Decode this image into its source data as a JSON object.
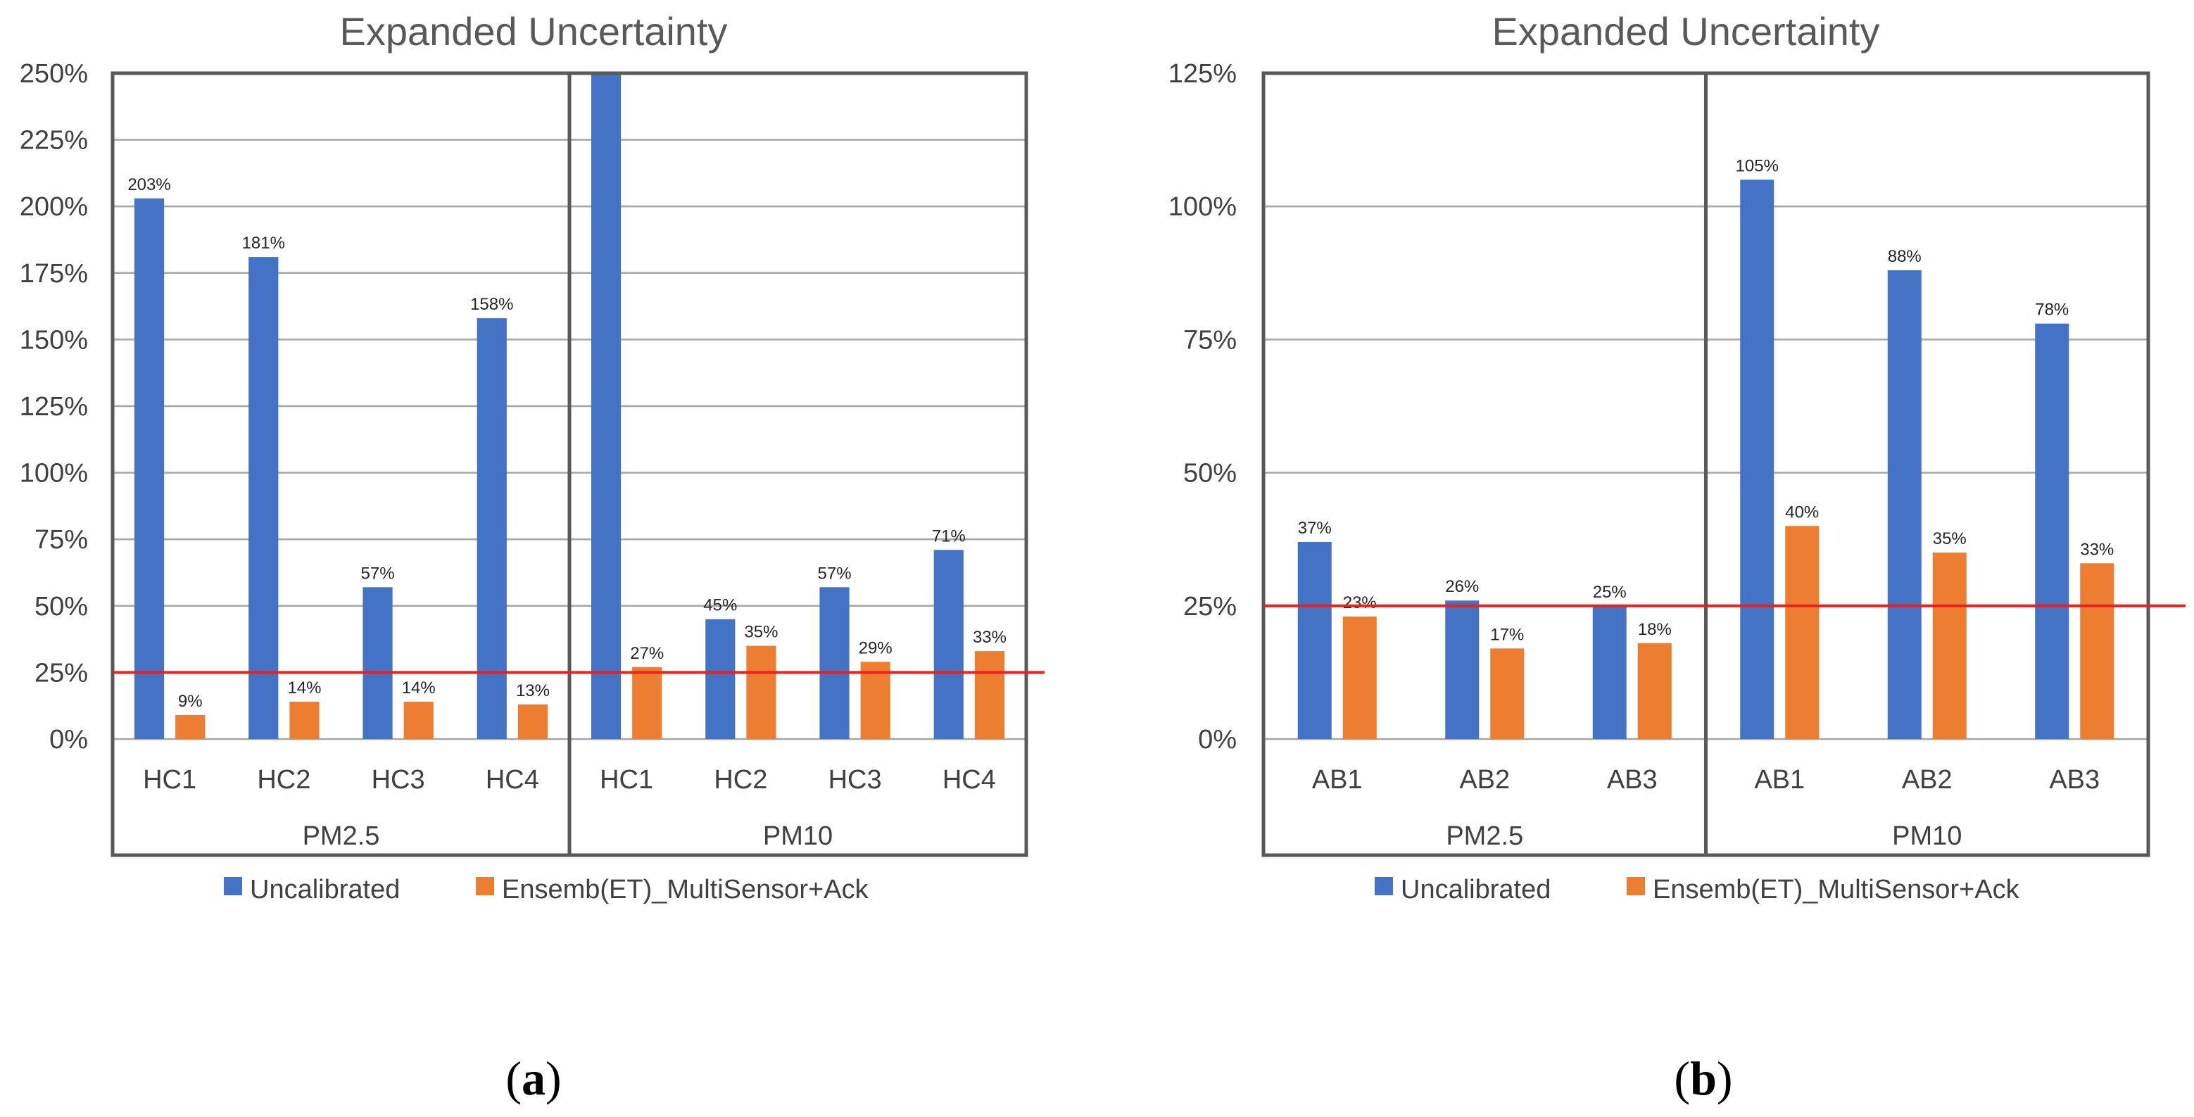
{
  "colors": {
    "uncalibrated": "#4472C4",
    "calibrated": "#ED7D31",
    "threshold": "#E8201E",
    "grid": "#A6A6A6",
    "frame": "#595959"
  },
  "legend": {
    "uncalibrated_label": "Uncalibrated",
    "calibrated_label": "Ensemb(ET)_MultiSensor+Ack"
  },
  "chart_data": [
    {
      "type": "bar",
      "panel_label": "a",
      "title": "Expanded Uncertainty",
      "ylim": [
        0,
        250
      ],
      "ytick_step": 25,
      "yticks": [
        "0%",
        "25%",
        "50%",
        "75%",
        "100%",
        "125%",
        "150%",
        "175%",
        "200%",
        "225%",
        "250%"
      ],
      "threshold": 25,
      "groups": [
        {
          "name": "PM2.5",
          "categories": [
            "HC1",
            "HC2",
            "HC3",
            "HC4"
          ]
        },
        {
          "name": "PM10",
          "categories": [
            "HC1",
            "HC2",
            "HC3",
            "HC4"
          ]
        }
      ],
      "series": [
        {
          "name": "Uncalibrated",
          "values": [
            203,
            181,
            57,
            158,
            250,
            45,
            57,
            71
          ],
          "labels": [
            "203%",
            "181%",
            "57%",
            "158%",
            "",
            "45%",
            "57%",
            "71%"
          ]
        },
        {
          "name": "Ensemb(ET)_MultiSensor+Ack",
          "values": [
            9,
            14,
            14,
            13,
            27,
            35,
            29,
            33
          ],
          "labels": [
            "9%",
            "14%",
            "14%",
            "13%",
            "27%",
            "35%",
            "29%",
            "33%"
          ]
        }
      ]
    },
    {
      "type": "bar",
      "panel_label": "b",
      "title": "Expanded Uncertainty",
      "ylim": [
        0,
        125
      ],
      "ytick_step": 25,
      "yticks": [
        "0%",
        "25%",
        "50%",
        "75%",
        "100%",
        "125%"
      ],
      "threshold": 25,
      "groups": [
        {
          "name": "PM2.5",
          "categories": [
            "AB1",
            "AB2",
            "AB3"
          ]
        },
        {
          "name": "PM10",
          "categories": [
            "AB1",
            "AB2",
            "AB3"
          ]
        }
      ],
      "series": [
        {
          "name": "Uncalibrated",
          "values": [
            37,
            26,
            25,
            105,
            88,
            78
          ],
          "labels": [
            "37%",
            "26%",
            "25%",
            "105%",
            "88%",
            "78%"
          ]
        },
        {
          "name": "Ensemb(ET)_MultiSensor+Ack",
          "values": [
            23,
            17,
            18,
            40,
            35,
            33
          ],
          "labels": [
            "23%",
            "17%",
            "18%",
            "40%",
            "35%",
            "33%"
          ]
        }
      ]
    }
  ]
}
